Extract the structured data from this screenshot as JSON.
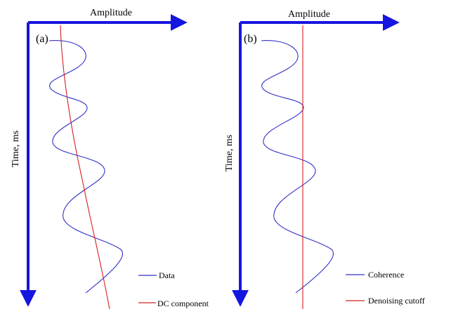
{
  "colors": {
    "axis": "#1515e0",
    "data_curve": "#3030c8",
    "dc_line": "#d42020",
    "background": "#ffffff"
  },
  "panels": [
    {
      "label": "(a)",
      "x_axis_label": "Amplitude",
      "y_axis_label": "Time,  ms",
      "legend": [
        {
          "name": "Data",
          "color": "#3030c8"
        },
        {
          "name": "DC component",
          "color": "#d42020"
        }
      ]
    },
    {
      "label": "(b)",
      "x_axis_label": "Amplitude",
      "y_axis_label": "Time,  ms",
      "legend": [
        {
          "name": "Coherence",
          "color": "#3030c8"
        },
        {
          "name": "Denoising cutoff",
          "color": "#d42020"
        }
      ]
    }
  ]
}
